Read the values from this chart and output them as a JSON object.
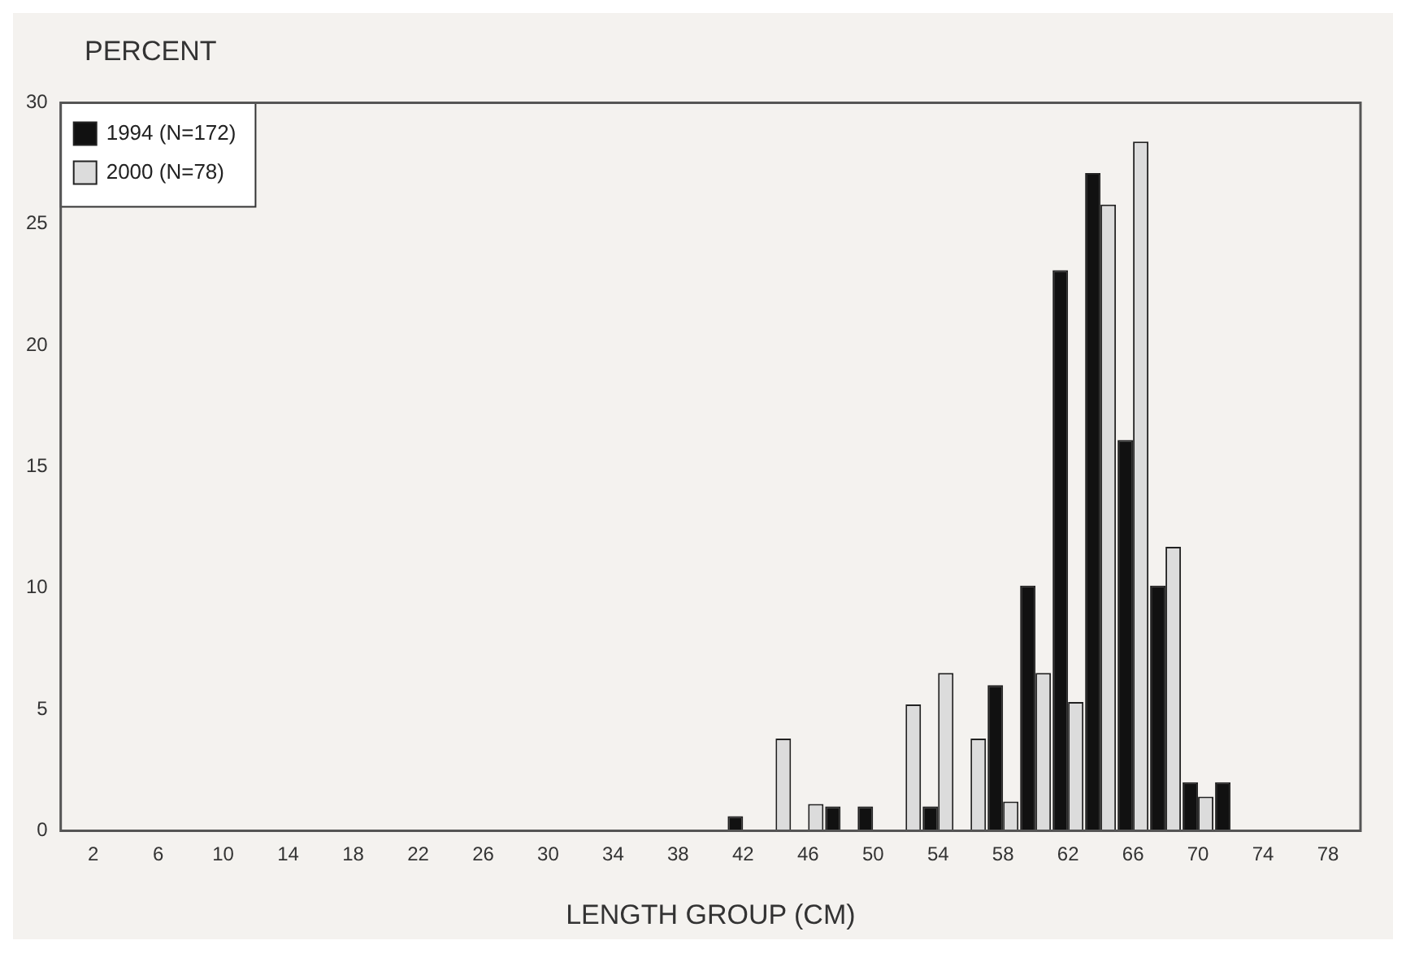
{
  "chart_data": {
    "type": "bar",
    "ylabel": "PERCENT",
    "xlabel": "LENGTH GROUP (CM)",
    "x": [
      2,
      4,
      6,
      8,
      10,
      12,
      14,
      16,
      18,
      20,
      22,
      24,
      26,
      28,
      30,
      32,
      34,
      36,
      38,
      40,
      42,
      44,
      46,
      48,
      50,
      52,
      54,
      56,
      58,
      60,
      62,
      64,
      66,
      68,
      70,
      72,
      74,
      76,
      78
    ],
    "series": [
      {
        "name": "1994 (N=172)",
        "color": "#111111",
        "values": [
          0,
          0,
          0,
          0,
          0,
          0,
          0,
          0,
          0,
          0,
          0,
          0,
          0,
          0,
          0,
          0,
          0,
          0,
          0,
          0,
          0.6,
          0,
          0,
          1.0,
          1.0,
          0,
          1.0,
          0,
          6.0,
          10.1,
          23.1,
          27.1,
          16.1,
          10.1,
          2.0,
          2.0,
          0,
          0,
          0
        ]
      },
      {
        "name": "2000 (N=78)",
        "color": "#dcdcdc",
        "values": [
          0,
          0,
          0,
          0,
          0,
          0,
          0,
          0,
          0,
          0,
          0,
          0,
          0,
          0,
          0,
          0,
          0,
          0,
          0,
          0,
          0,
          3.8,
          1.1,
          0,
          0,
          5.2,
          6.5,
          3.8,
          1.2,
          6.5,
          5.3,
          25.8,
          28.4,
          11.7,
          1.4,
          0,
          0,
          0,
          0
        ]
      }
    ],
    "xlim": [
      0,
      80
    ],
    "xticks": [
      2,
      6,
      10,
      14,
      18,
      22,
      26,
      30,
      34,
      38,
      42,
      46,
      50,
      54,
      58,
      62,
      66,
      70,
      74,
      78
    ],
    "ylim": [
      0,
      30
    ],
    "yticks": [
      0,
      5,
      10,
      15,
      20,
      25,
      30
    ],
    "grid": false,
    "legend": "top left"
  }
}
